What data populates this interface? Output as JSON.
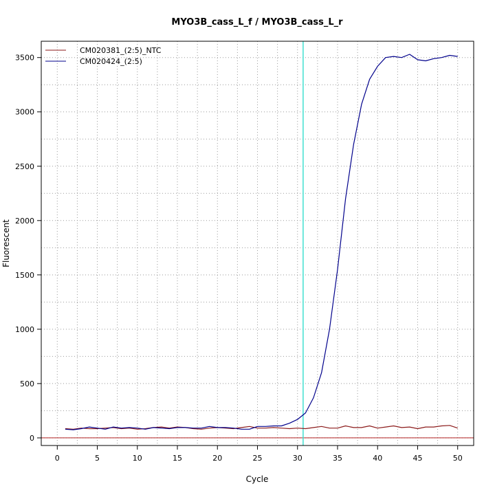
{
  "chart_data": {
    "type": "line",
    "title": "MYO3B_cass_L_f / MYO3B_cass_L_r",
    "xlabel": "Cycle",
    "ylabel": "Fluorescent",
    "xlim": [
      -2,
      52
    ],
    "ylim": [
      -70,
      3650
    ],
    "xticks": [
      0,
      5,
      10,
      15,
      20,
      25,
      30,
      35,
      40,
      45,
      50
    ],
    "yticks": [
      0,
      500,
      1000,
      1500,
      2000,
      2500,
      3000,
      3500
    ],
    "x_minor_grid": [
      2.5,
      7.5,
      12.5,
      17.5,
      22.5,
      27.5,
      32.5,
      37.5,
      42.5,
      47.5
    ],
    "y_minor_grid": [
      250,
      750,
      1250,
      1750,
      2250,
      2750,
      3250
    ],
    "grid": true,
    "legend_position": "top-left",
    "threshold": {
      "axis": "x",
      "value": 30.7,
      "color": "#40e0d0"
    },
    "baseline": {
      "axis": "y",
      "value": 0,
      "color": "#b22222"
    },
    "x": [
      1,
      2,
      3,
      4,
      5,
      6,
      7,
      8,
      9,
      10,
      11,
      12,
      13,
      14,
      15,
      16,
      17,
      18,
      19,
      20,
      21,
      22,
      23,
      24,
      25,
      26,
      27,
      28,
      29,
      30,
      31,
      32,
      33,
      34,
      35,
      36,
      37,
      38,
      39,
      40,
      41,
      42,
      43,
      44,
      45,
      46,
      47,
      48,
      49,
      50
    ],
    "series": [
      {
        "name": "CM020381_(2:5)_NTC",
        "color": "#8b1a1a",
        "values": [
          85,
          80,
          90,
          85,
          85,
          90,
          95,
          85,
          90,
          80,
          85,
          95,
          100,
          90,
          100,
          95,
          85,
          80,
          90,
          95,
          90,
          85,
          95,
          105,
          90,
          90,
          95,
          90,
          85,
          90,
          85,
          95,
          105,
          90,
          90,
          110,
          95,
          95,
          110,
          90,
          100,
          110,
          95,
          100,
          85,
          100,
          100,
          110,
          115,
          90
        ]
      },
      {
        "name": "CM020424_(2:5)",
        "color": "#00008b",
        "values": [
          80,
          75,
          85,
          100,
          90,
          80,
          100,
          90,
          95,
          90,
          80,
          95,
          90,
          85,
          95,
          95,
          90,
          90,
          105,
          95,
          95,
          90,
          80,
          80,
          105,
          105,
          110,
          110,
          135,
          170,
          230,
          370,
          600,
          1000,
          1550,
          2200,
          2700,
          3070,
          3300,
          3420,
          3500,
          3510,
          3500,
          3530,
          3480,
          3470,
          3490,
          3500,
          3520,
          3510
        ]
      }
    ]
  }
}
